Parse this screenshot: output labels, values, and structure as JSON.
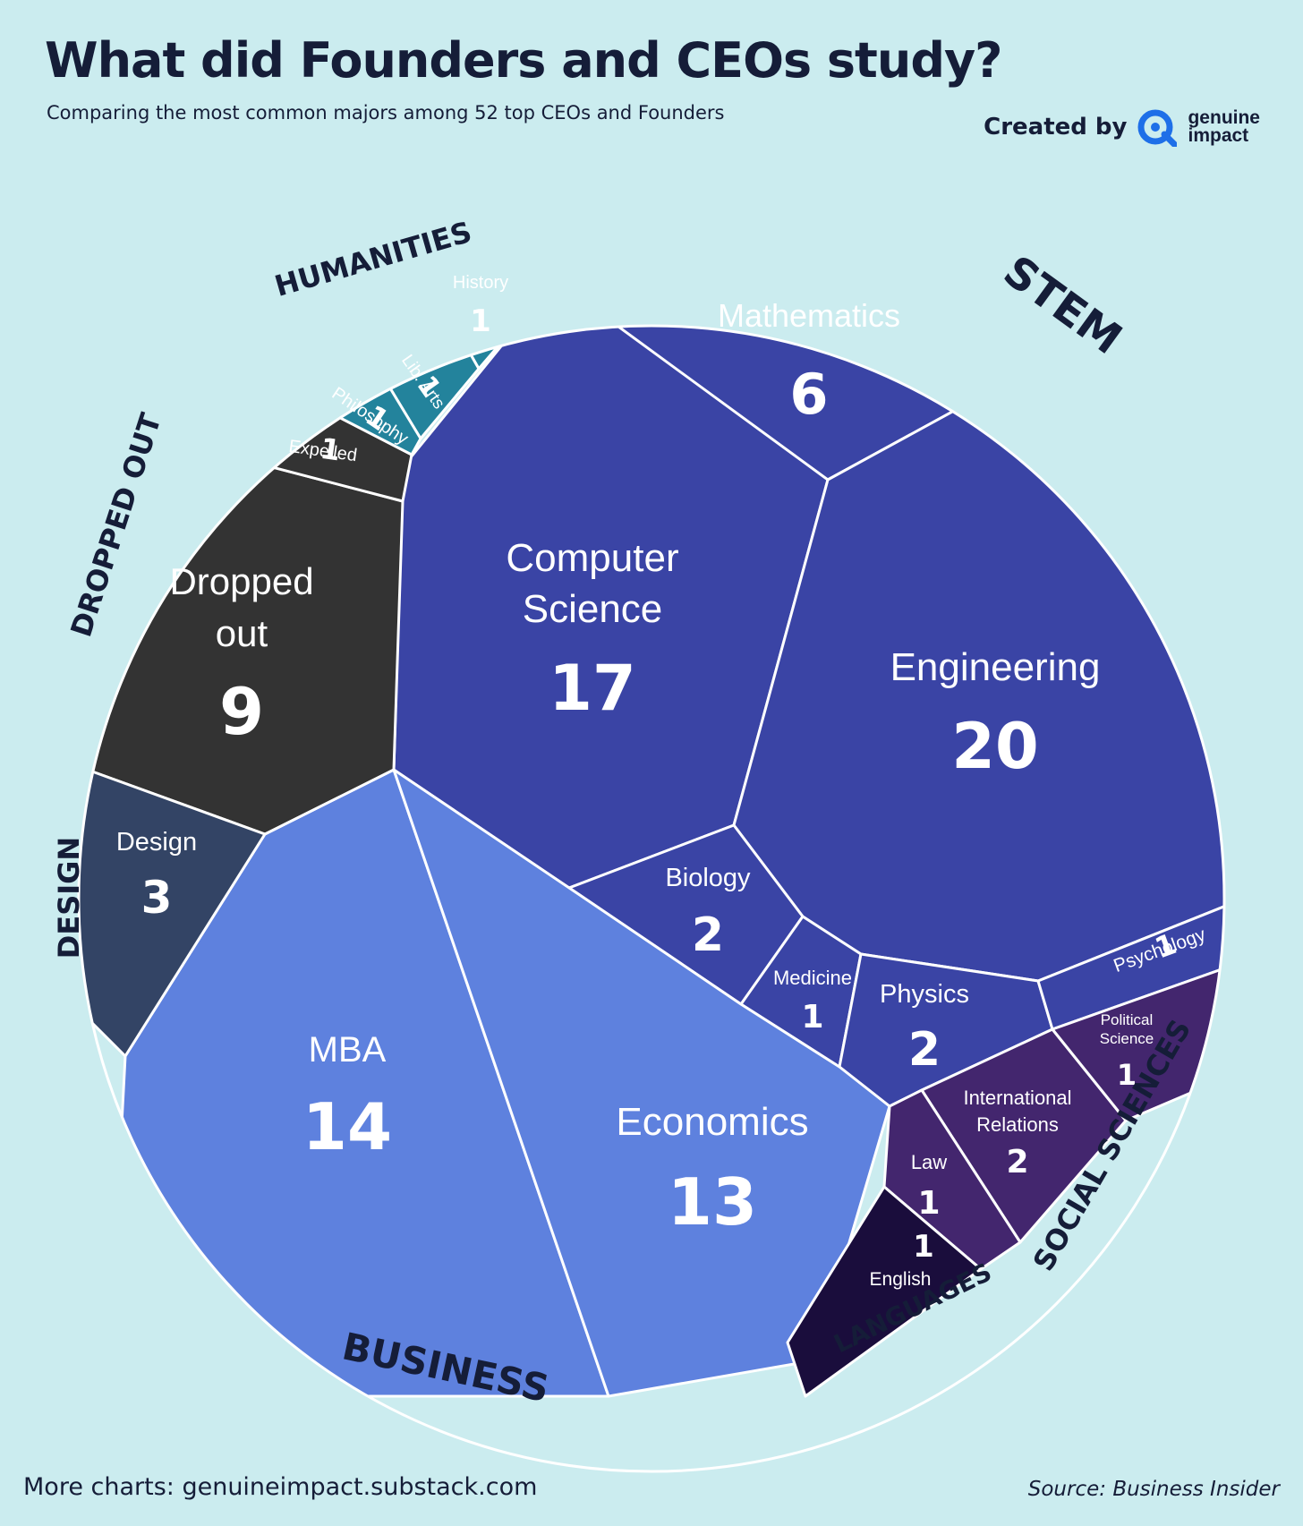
{
  "title": "What did Founders and CEOs study?",
  "subtitle": "Comparing the most common majors among 52 top CEOs and Founders",
  "credit": {
    "label": "Created by",
    "brand_line1": "genuine",
    "brand_line2": "impact",
    "brand_color": "#1e6fe8"
  },
  "footer": {
    "more": "More charts: genuineimpact.substack.com",
    "source": "Source: Business Insider"
  },
  "colors": {
    "stem": "#3a44a5",
    "business": "#5e81de",
    "dropped_out": "#333333",
    "design": "#334465",
    "humanities": "#23839c",
    "social_sciences": "#43266e",
    "languages": "#1a0d3c",
    "border": "#ffffff"
  },
  "chart_data": {
    "type": "voronoi-treemap",
    "groups": [
      {
        "name": "STEM",
        "items": [
          {
            "label": "Engineering",
            "value": 20
          },
          {
            "label": "Computer Science",
            "value": 17
          },
          {
            "label": "Mathematics",
            "value": 6
          },
          {
            "label": "Biology",
            "value": 2
          },
          {
            "label": "Physics",
            "value": 2
          },
          {
            "label": "Medicine",
            "value": 1
          },
          {
            "label": "Psychology",
            "value": 1
          }
        ]
      },
      {
        "name": "BUSINESS",
        "items": [
          {
            "label": "MBA",
            "value": 14
          },
          {
            "label": "Economics",
            "value": 13
          }
        ]
      },
      {
        "name": "DROPPED OUT",
        "items": [
          {
            "label": "Dropped out",
            "value": 9
          },
          {
            "label": "Expelled",
            "value": 1
          }
        ]
      },
      {
        "name": "DESIGN",
        "items": [
          {
            "label": "Design",
            "value": 3
          }
        ]
      },
      {
        "name": "HUMANITIES",
        "items": [
          {
            "label": "History",
            "value": 1
          },
          {
            "label": "Lib. Arts",
            "value": 1
          },
          {
            "label": "Philosophy",
            "value": 1
          }
        ]
      },
      {
        "name": "SOCIAL SCIENCES",
        "items": [
          {
            "label": "International Relations",
            "value": 2
          },
          {
            "label": "Political Science",
            "value": 1
          },
          {
            "label": "Law",
            "value": 1
          }
        ]
      },
      {
        "name": "LANGUAGES",
        "items": [
          {
            "label": "English",
            "value": 1
          }
        ]
      }
    ]
  }
}
